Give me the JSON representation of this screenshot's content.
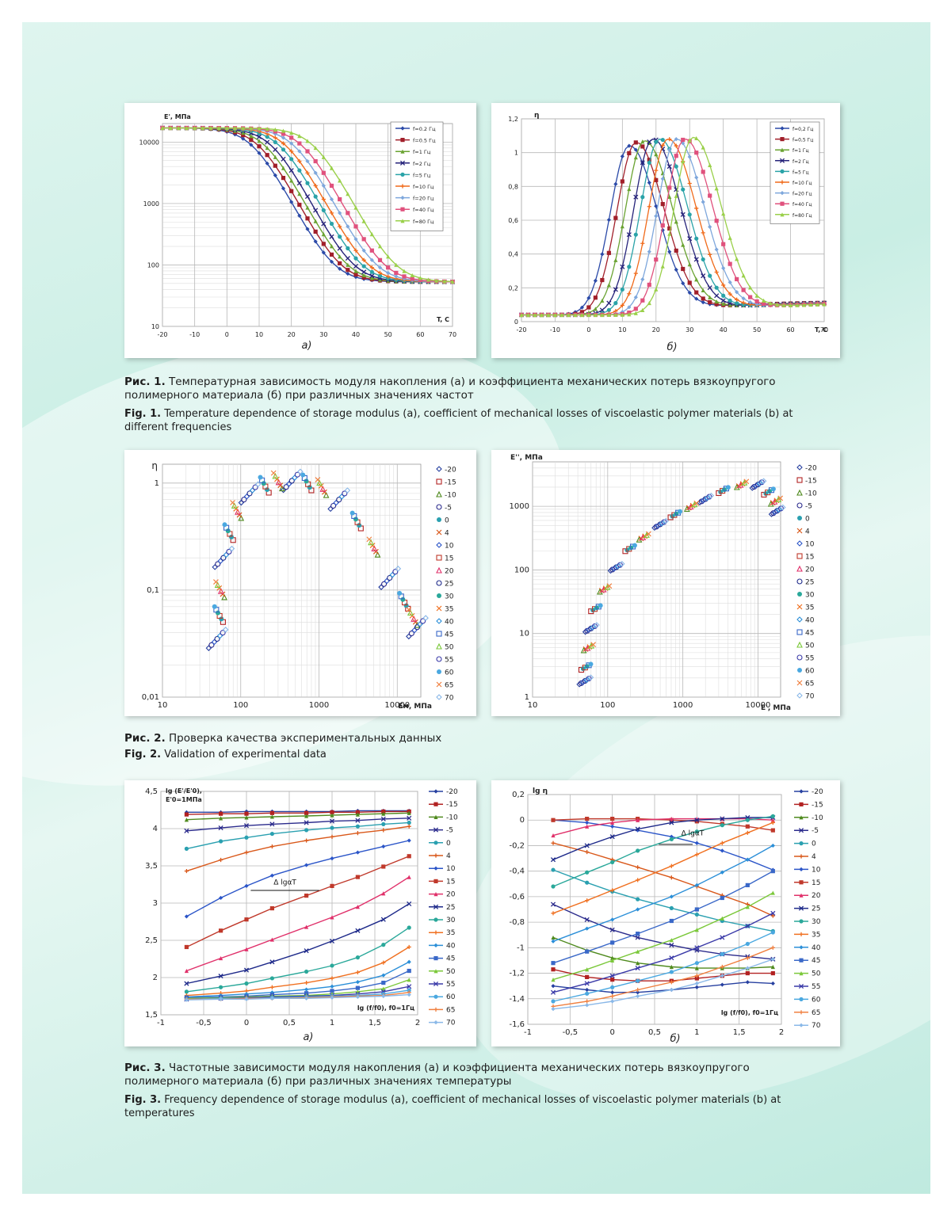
{
  "captions": {
    "fig1_ru_num": "Рис. 1.",
    "fig1_ru": "Температурная зависимость модуля накопления (а) и коэффициента механических потерь вязкоупругого полимерного материала (б) при различных значениях частот",
    "fig1_en_num": "Fig. 1.",
    "fig1_en": "Temperature dependence of storage modulus (a), coefficient of mechanical losses of viscoelastic polymer materials (b) at different frequencies",
    "fig2_ru_num": "Рис. 2.",
    "fig2_ru": "Проверка качества экспериментальных данных",
    "fig2_en_num": "Fig. 2.",
    "fig2_en": "Validation of experimental data",
    "fig3_ru_num": "Рис. 3.",
    "fig3_ru": "Частотные зависимости модуля накопления (а) и коэффициента механических потерь вязкоупругого полимерного материала (б) при различных значениях температуры",
    "fig3_en_num": "Fig. 3.",
    "fig3_en": "Frequency dependence of storage modulus (a), coefficient of mechanical losses of viscoelastic polymer materials (b) at temperatures"
  },
  "colors": {
    "freq": [
      "#2b4aa8",
      "#a11f2a",
      "#6aa332",
      "#26237a",
      "#2aa3a8",
      "#f06a1a",
      "#7ea7dc",
      "#e0517d",
      "#9ad04a"
    ],
    "temp": [
      "#2740a0",
      "#b22222",
      "#4f8a1e",
      "#2b2b8c",
      "#2aa0b0",
      "#d9581a",
      "#2b55c8",
      "#c0392b",
      "#e0306a",
      "#1e2a8a",
      "#2aa89a",
      "#f07020",
      "#2b8fd8",
      "#3a68c8",
      "#7bc83a",
      "#3a3aa8",
      "#4aa8e0",
      "#f08040",
      "#8ab8e8"
    ]
  },
  "chart_data": [
    {
      "id": "fig1a",
      "type": "line",
      "ylabel": "E', МПа",
      "xlabel": "T, C",
      "ylog": true,
      "xlim": [
        -20,
        70
      ],
      "ylim": [
        10,
        20000
      ],
      "xticks": [
        "-20",
        "-10",
        "0",
        "10",
        "20",
        "30",
        "40",
        "50",
        "60",
        "70"
      ],
      "yticks": [
        "10",
        "100",
        "1000",
        "10000"
      ],
      "panel_label": "а)",
      "legend": [
        "f=0.2 Гц",
        "f=0.5 Гц",
        "f=1 Гц",
        "f=2 Гц",
        "f=5 Гц",
        "f=10 Гц",
        "f=20 Гц",
        "f=40 Гц",
        "f=80 Гц"
      ],
      "sigmoid": {
        "high": 17000,
        "low": 53,
        "centers": [
          8,
          10,
          12,
          14,
          16.5,
          18.5,
          21,
          23.5,
          27
        ],
        "width": 7
      },
      "x": [
        -20,
        -15,
        -10,
        -5,
        0,
        5,
        10,
        15,
        20,
        25,
        30,
        35,
        40,
        45,
        50,
        55,
        60,
        65,
        70
      ]
    },
    {
      "id": "fig1b",
      "type": "line",
      "ylabel": "η",
      "xlabel": "T, C",
      "xlim": [
        -20,
        70
      ],
      "ylim": [
        0,
        1.2
      ],
      "xticks": [
        "-20",
        "-10",
        "0",
        "10",
        "20",
        "30",
        "40",
        "50",
        "60",
        "70"
      ],
      "yticks": [
        "0",
        "0,2",
        "0,4",
        "0,6",
        "0,8",
        "1",
        "1,2"
      ],
      "panel_label": "б)",
      "legend": [
        "f=0,2 Гц",
        "f=0,5 Гц",
        "f=1 Гц",
        "f=2 Гц",
        "f=5 Гц",
        "f=10 Гц",
        "f=20 Гц",
        "f=40 Гц",
        "f=80 Гц"
      ],
      "peaks": {
        "centers": [
          12,
          14,
          16.5,
          19,
          21,
          23.5,
          26,
          28.5,
          31
        ],
        "heights": [
          1.04,
          1.06,
          1.07,
          1.08,
          1.08,
          1.08,
          1.08,
          1.08,
          1.09
        ],
        "base": 0.04
      },
      "x": [
        -20,
        -15,
        -10,
        -5,
        0,
        5,
        10,
        15,
        20,
        25,
        30,
        35,
        40,
        45,
        50,
        55,
        60,
        65,
        70
      ]
    },
    {
      "id": "fig2a",
      "type": "scatter",
      "ylabel": "η",
      "xlabel": "Eм, МПа",
      "xlog": true,
      "ylog": true,
      "xlim": [
        10,
        20000
      ],
      "ylim": [
        0.01,
        1.5
      ],
      "xticks": [
        "10",
        "100",
        "1000",
        "10000"
      ],
      "yticks": [
        "0,01",
        "0,1",
        "1"
      ],
      "legend": [
        "-20",
        "-15",
        "-10",
        "-5",
        "0",
        "4",
        "10",
        "15",
        "20",
        "25",
        "30",
        "35",
        "40",
        "45",
        "50",
        "55",
        "60",
        "65",
        "70"
      ],
      "points": [
        [
          50,
          0.035
        ],
        [
          52,
          0.06
        ],
        [
          55,
          0.1
        ],
        [
          60,
          0.2
        ],
        [
          70,
          0.35
        ],
        [
          90,
          0.55
        ],
        [
          130,
          0.8
        ],
        [
          200,
          0.97
        ],
        [
          300,
          1.04
        ],
        [
          450,
          1.05
        ],
        [
          700,
          1.02
        ],
        [
          1100,
          0.9
        ],
        [
          1800,
          0.7
        ],
        [
          3000,
          0.45
        ],
        [
          5000,
          0.25
        ],
        [
          8000,
          0.13
        ],
        [
          12000,
          0.08
        ],
        [
          16000,
          0.055
        ],
        [
          18000,
          0.045
        ]
      ]
    },
    {
      "id": "fig2b",
      "type": "scatter",
      "ylabel": "E'', МПа",
      "xlabel": "E', МПа",
      "xlog": true,
      "ylog": true,
      "xlim": [
        10,
        20000
      ],
      "ylim": [
        1,
        5000
      ],
      "xticks": [
        "10",
        "100",
        "1000",
        "10000"
      ],
      "yticks": [
        "1",
        "10",
        "100",
        "1000"
      ],
      "legend": [
        "-20",
        "-15",
        "-10",
        "-5",
        "0",
        "4",
        "10",
        "15",
        "20",
        "25",
        "30",
        "35",
        "40",
        "45",
        "50",
        "55",
        "60",
        "65",
        "70"
      ],
      "points": [
        [
          50,
          1.8
        ],
        [
          52,
          3
        ],
        [
          55,
          6
        ],
        [
          60,
          12
        ],
        [
          70,
          25
        ],
        [
          90,
          50
        ],
        [
          130,
          110
        ],
        [
          200,
          220
        ],
        [
          300,
          330
        ],
        [
          500,
          520
        ],
        [
          800,
          750
        ],
        [
          1300,
          1000
        ],
        [
          2000,
          1300
        ],
        [
          3500,
          1800
        ],
        [
          6000,
          2200
        ],
        [
          10000,
          2200
        ],
        [
          14000,
          1700
        ],
        [
          17000,
          1200
        ],
        [
          18000,
          850
        ]
      ]
    },
    {
      "id": "fig3a",
      "type": "line",
      "ylabel": "lg (E'/E'0), E'0=1МПа",
      "xlabel": "lg (f/f0), f0=1Гц",
      "xlim": [
        -1,
        2
      ],
      "ylim": [
        1.5,
        4.5
      ],
      "xticks": [
        "-1",
        "-0,5",
        "0",
        "0,5",
        "1",
        "1,5",
        "2"
      ],
      "yticks": [
        "1,5",
        "2",
        "2,5",
        "3",
        "3,5",
        "4",
        "4,5"
      ],
      "panel_label": "а)",
      "annotation": "Δ lgαT",
      "legend": [
        "-20",
        "-15",
        "-10",
        "-5",
        "0",
        "4",
        "10",
        "15",
        "20",
        "25",
        "30",
        "35",
        "40",
        "45",
        "50",
        "55",
        "60",
        "65",
        "70"
      ],
      "x": [
        -0.7,
        -0.3,
        0,
        0.3,
        0.7,
        1,
        1.3,
        1.6,
        1.9
      ],
      "series": [
        [
          4.22,
          4.22,
          4.23,
          4.23,
          4.23,
          4.23,
          4.24,
          4.24,
          4.24
        ],
        [
          4.19,
          4.2,
          4.2,
          4.21,
          4.21,
          4.22,
          4.22,
          4.23,
          4.23
        ],
        [
          4.12,
          4.14,
          4.15,
          4.16,
          4.17,
          4.18,
          4.19,
          4.2,
          4.21
        ],
        [
          3.97,
          4.01,
          4.04,
          4.06,
          4.08,
          4.1,
          4.11,
          4.13,
          4.14
        ],
        [
          3.73,
          3.83,
          3.88,
          3.93,
          3.98,
          4.01,
          4.03,
          4.06,
          4.08
        ],
        [
          3.43,
          3.58,
          3.68,
          3.76,
          3.84,
          3.89,
          3.94,
          3.98,
          4.03
        ],
        [
          2.82,
          3.07,
          3.23,
          3.37,
          3.51,
          3.6,
          3.68,
          3.76,
          3.84
        ],
        [
          2.41,
          2.63,
          2.78,
          2.93,
          3.1,
          3.23,
          3.35,
          3.49,
          3.63
        ],
        [
          2.09,
          2.26,
          2.38,
          2.51,
          2.68,
          2.81,
          2.95,
          3.13,
          3.35
        ],
        [
          1.92,
          2.02,
          2.1,
          2.21,
          2.36,
          2.49,
          2.63,
          2.78,
          2.99
        ],
        [
          1.81,
          1.87,
          1.92,
          1.99,
          2.08,
          2.16,
          2.27,
          2.44,
          2.67
        ],
        [
          1.76,
          1.79,
          1.82,
          1.87,
          1.93,
          1.99,
          2.07,
          2.2,
          2.41
        ],
        [
          1.74,
          1.76,
          1.78,
          1.8,
          1.84,
          1.88,
          1.94,
          2.03,
          2.21
        ],
        [
          1.73,
          1.74,
          1.75,
          1.77,
          1.79,
          1.82,
          1.86,
          1.93,
          2.09
        ],
        [
          1.72,
          1.73,
          1.74,
          1.75,
          1.76,
          1.78,
          1.81,
          1.85,
          1.97
        ],
        [
          1.71,
          1.72,
          1.73,
          1.74,
          1.75,
          1.76,
          1.78,
          1.81,
          1.88
        ],
        [
          1.71,
          1.72,
          1.72,
          1.73,
          1.74,
          1.75,
          1.76,
          1.78,
          1.83
        ],
        [
          1.71,
          1.71,
          1.72,
          1.72,
          1.73,
          1.74,
          1.75,
          1.76,
          1.8
        ],
        [
          1.7,
          1.71,
          1.71,
          1.72,
          1.72,
          1.73,
          1.74,
          1.75,
          1.77
        ]
      ]
    },
    {
      "id": "fig3b",
      "type": "line",
      "ylabel": "lg η",
      "xlabel": "lg (f/f0), f0=1Гц",
      "xlim": [
        -1,
        2
      ],
      "ylim": [
        -1.6,
        0.2
      ],
      "xticks": [
        "-1",
        "-0,5",
        "0",
        "0,5",
        "1",
        "1,5",
        "2"
      ],
      "yticks": [
        "-1,6",
        "-1,4",
        "-1,2",
        "-1",
        "-0,8",
        "-0,6",
        "-0,4",
        "-0,2",
        "0",
        "0,2"
      ],
      "panel_label": "б)",
      "annotation": "Δ lgαT",
      "legend": [
        "-20",
        "-15",
        "-10",
        "-5",
        "0",
        "4",
        "10",
        "15",
        "20",
        "25",
        "30",
        "35",
        "40",
        "45",
        "50",
        "55",
        "60",
        "65",
        "70"
      ],
      "x": [
        -0.7,
        -0.3,
        0,
        0.3,
        0.7,
        1,
        1.3,
        1.6,
        1.9
      ],
      "series": [
        [
          -1.3,
          -1.33,
          -1.35,
          -1.35,
          -1.33,
          -1.31,
          -1.29,
          -1.27,
          -1.28
        ],
        [
          -1.17,
          -1.23,
          -1.25,
          -1.26,
          -1.26,
          -1.24,
          -1.22,
          -1.2,
          -1.2
        ],
        [
          -0.92,
          -1.02,
          -1.08,
          -1.12,
          -1.15,
          -1.16,
          -1.16,
          -1.16,
          -1.15
        ],
        [
          -0.66,
          -0.78,
          -0.86,
          -0.92,
          -0.98,
          -1.02,
          -1.05,
          -1.07,
          -1.09
        ],
        [
          -0.39,
          -0.49,
          -0.56,
          -0.62,
          -0.69,
          -0.74,
          -0.79,
          -0.83,
          -0.87
        ],
        [
          -0.18,
          -0.25,
          -0.31,
          -0.37,
          -0.45,
          -0.52,
          -0.59,
          -0.66,
          -0.75
        ],
        [
          0,
          -0.02,
          -0.05,
          -0.08,
          -0.13,
          -0.18,
          -0.24,
          -0.31,
          -0.39
        ],
        [
          0,
          0.01,
          0.01,
          0.01,
          0,
          -0.01,
          -0.03,
          -0.05,
          -0.08
        ],
        [
          -0.12,
          -0.05,
          -0.02,
          0,
          0.01,
          0.01,
          0.01,
          0.01,
          0
        ],
        [
          -0.31,
          -0.2,
          -0.13,
          -0.07,
          -0.02,
          0,
          0.01,
          0.02,
          0.02
        ],
        [
          -0.52,
          -0.41,
          -0.33,
          -0.24,
          -0.15,
          -0.09,
          -0.04,
          0,
          0.03
        ],
        [
          -0.73,
          -0.63,
          -0.55,
          -0.47,
          -0.36,
          -0.27,
          -0.18,
          -0.1,
          -0.02
        ],
        [
          -0.95,
          -0.85,
          -0.78,
          -0.7,
          -0.6,
          -0.51,
          -0.41,
          -0.31,
          -0.2
        ],
        [
          -1.12,
          -1.03,
          -0.96,
          -0.89,
          -0.79,
          -0.7,
          -0.61,
          -0.51,
          -0.4
        ],
        [
          -1.25,
          -1.17,
          -1.1,
          -1.03,
          -0.94,
          -0.86,
          -0.77,
          -0.68,
          -0.57
        ],
        [
          -1.35,
          -1.28,
          -1.22,
          -1.16,
          -1.08,
          -1,
          -0.92,
          -0.83,
          -0.73
        ],
        [
          -1.42,
          -1.36,
          -1.31,
          -1.26,
          -1.19,
          -1.12,
          -1.05,
          -0.97,
          -0.88
        ],
        [
          -1.46,
          -1.42,
          -1.38,
          -1.33,
          -1.27,
          -1.22,
          -1.15,
          -1.08,
          -1
        ],
        [
          -1.48,
          -1.45,
          -1.42,
          -1.38,
          -1.33,
          -1.28,
          -1.22,
          -1.16,
          -1.09
        ]
      ]
    }
  ]
}
